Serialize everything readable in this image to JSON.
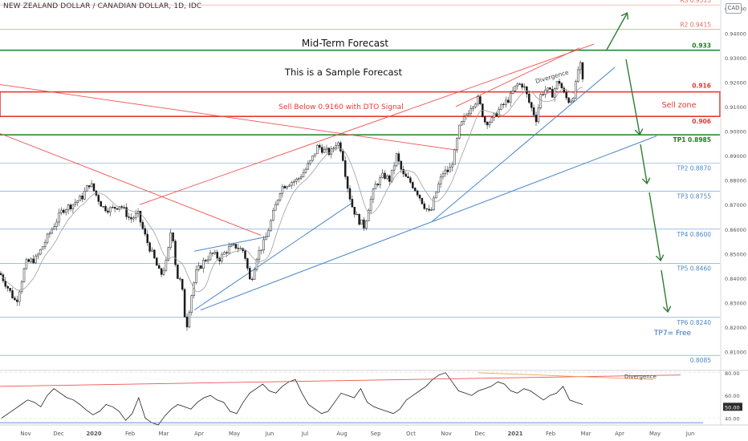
{
  "title": "NEW ZEALAND DOLLAR / CANADIAN DOLLAR, 1D, IDC",
  "currency": "CAD",
  "chart_data": {
    "type": "candlestick",
    "symbol": "NZDCAD",
    "ylim": [
      0.803,
      0.9535
    ],
    "y_ticks": [
      "0.95000",
      "0.94000",
      "0.93000",
      "0.92000",
      "0.91000",
      "0.90000",
      "0.89000",
      "0.88000",
      "0.87000",
      "0.86000",
      "0.85000",
      "0.84000",
      "0.83000",
      "0.82000",
      "0.81000"
    ],
    "x_ticks": [
      "Nov",
      "Dec",
      "2020",
      "Feb",
      "Mar",
      "Apr",
      "May",
      "Jun",
      "Jul",
      "Aug",
      "Sep",
      "Oct",
      "Nov",
      "Dec",
      "2021",
      "Feb",
      "Mar",
      "Apr",
      "May",
      "Jun"
    ],
    "price_path": [
      [
        0,
        0.842
      ],
      [
        10,
        0.836
      ],
      [
        20,
        0.83
      ],
      [
        32,
        0.846
      ],
      [
        45,
        0.848
      ],
      [
        58,
        0.856
      ],
      [
        68,
        0.862
      ],
      [
        78,
        0.868
      ],
      [
        90,
        0.87
      ],
      [
        102,
        0.873
      ],
      [
        112,
        0.879
      ],
      [
        118,
        0.875
      ],
      [
        128,
        0.869
      ],
      [
        138,
        0.868
      ],
      [
        150,
        0.87
      ],
      [
        162,
        0.864
      ],
      [
        172,
        0.866
      ],
      [
        182,
        0.856
      ],
      [
        192,
        0.848
      ],
      [
        200,
        0.841
      ],
      [
        208,
        0.847
      ],
      [
        214,
        0.862
      ],
      [
        220,
        0.841
      ],
      [
        226,
        0.838
      ],
      [
        232,
        0.819
      ],
      [
        238,
        0.832
      ],
      [
        244,
        0.842
      ],
      [
        254,
        0.847
      ],
      [
        264,
        0.85
      ],
      [
        274,
        0.848
      ],
      [
        284,
        0.852
      ],
      [
        294,
        0.853
      ],
      [
        304,
        0.851
      ],
      [
        312,
        0.838
      ],
      [
        320,
        0.849
      ],
      [
        330,
        0.855
      ],
      [
        340,
        0.866
      ],
      [
        350,
        0.877
      ],
      [
        360,
        0.879
      ],
      [
        370,
        0.88
      ],
      [
        380,
        0.884
      ],
      [
        388,
        0.888
      ],
      [
        396,
        0.894
      ],
      [
        404,
        0.892
      ],
      [
        412,
        0.891
      ],
      [
        420,
        0.896
      ],
      [
        426,
        0.892
      ],
      [
        432,
        0.879
      ],
      [
        438,
        0.87
      ],
      [
        446,
        0.864
      ],
      [
        454,
        0.861
      ],
      [
        460,
        0.87
      ],
      [
        468,
        0.878
      ],
      [
        478,
        0.882
      ],
      [
        486,
        0.88
      ],
      [
        494,
        0.89
      ],
      [
        502,
        0.882
      ],
      [
        512,
        0.879
      ],
      [
        520,
        0.875
      ],
      [
        528,
        0.87
      ],
      [
        536,
        0.866
      ],
      [
        544,
        0.876
      ],
      [
        552,
        0.883
      ],
      [
        560,
        0.884
      ],
      [
        566,
        0.89
      ],
      [
        572,
        0.901
      ],
      [
        580,
        0.906
      ],
      [
        588,
        0.911
      ],
      [
        596,
        0.913
      ],
      [
        604,
        0.904
      ],
      [
        612,
        0.904
      ],
      [
        620,
        0.908
      ],
      [
        628,
        0.911
      ],
      [
        636,
        0.914
      ],
      [
        644,
        0.919
      ],
      [
        652,
        0.919
      ],
      [
        660,
        0.911
      ],
      [
        668,
        0.905
      ],
      [
        674,
        0.915
      ],
      [
        680,
        0.917
      ],
      [
        688,
        0.915
      ],
      [
        696,
        0.921
      ],
      [
        704,
        0.914
      ],
      [
        710,
        0.912
      ],
      [
        716,
        0.916
      ],
      [
        722,
        0.929
      ],
      [
        726,
        0.92
      ]
    ],
    "horizontal_levels": [
      {
        "name": "R3",
        "label": "R3 0.9515",
        "value": 0.9515,
        "color": "#e4695e"
      },
      {
        "name": "R2",
        "label": "R2 0.9415",
        "value": 0.9415,
        "color": "#e4695e"
      },
      {
        "name": "level-0933",
        "label": "0.933",
        "value": 0.933,
        "color": "#1e7d23"
      },
      {
        "name": "level-0916",
        "label": "0.916",
        "value": 0.916,
        "color": "#e53935"
      },
      {
        "name": "level-0906",
        "label": "0.906",
        "value": 0.906,
        "color": "#e53935"
      },
      {
        "name": "TP1",
        "label": "TP1 0.8985",
        "value": 0.8985,
        "color": "#1e7d23"
      },
      {
        "name": "TP2",
        "label": "TP2 0.8870",
        "value": 0.887,
        "color": "#4a86c8"
      },
      {
        "name": "TP3",
        "label": "TP3 0.8755",
        "value": 0.8755,
        "color": "#4a86c8"
      },
      {
        "name": "TP4",
        "label": "TP4 0.8600",
        "value": 0.86,
        "color": "#4a86c8"
      },
      {
        "name": "TP5",
        "label": "TP5 0.8460",
        "value": 0.846,
        "color": "#4a86c8"
      },
      {
        "name": "TP6",
        "label": "TP6 0.8240",
        "value": 0.824,
        "color": "#4a86c8"
      },
      {
        "name": "level-08085",
        "label": "0.8085",
        "value": 0.8085,
        "color": "#4a86c8"
      }
    ],
    "annotations": {
      "mid_term_forecast": "Mid-Term Forecast",
      "sample_forecast": "This is a Sample Forecast",
      "sell_below": "Sell Below 0.9160 with DTO Signal",
      "sell_zone": "Sell zone",
      "divergence_price": "Divergence",
      "tp7": "TP7= Free"
    },
    "oscillator": {
      "type": "rsi",
      "ylim": [
        34,
        82
      ],
      "y_ticks": [
        "80.00",
        "60.00",
        "50.00",
        "40.00"
      ],
      "current_value": "50.00",
      "divergence_label": "Divergence",
      "values": [
        40,
        44,
        48,
        52,
        56,
        54,
        50,
        60,
        66,
        62,
        58,
        56,
        52,
        47,
        43,
        46,
        52,
        50,
        46,
        38,
        44,
        58,
        40,
        36,
        34,
        42,
        48,
        52,
        50,
        48,
        54,
        58,
        60,
        56,
        54,
        46,
        44,
        54,
        62,
        66,
        70,
        64,
        62,
        68,
        72,
        74,
        62,
        52,
        48,
        44,
        46,
        54,
        62,
        60,
        58,
        66,
        54,
        50,
        48,
        46,
        44,
        48,
        56,
        60,
        64,
        68,
        74,
        78,
        80,
        72,
        64,
        62,
        60,
        64,
        66,
        68,
        72,
        70,
        64,
        62,
        66,
        64,
        60,
        56,
        60,
        62,
        68,
        56,
        54,
        52
      ]
    }
  }
}
